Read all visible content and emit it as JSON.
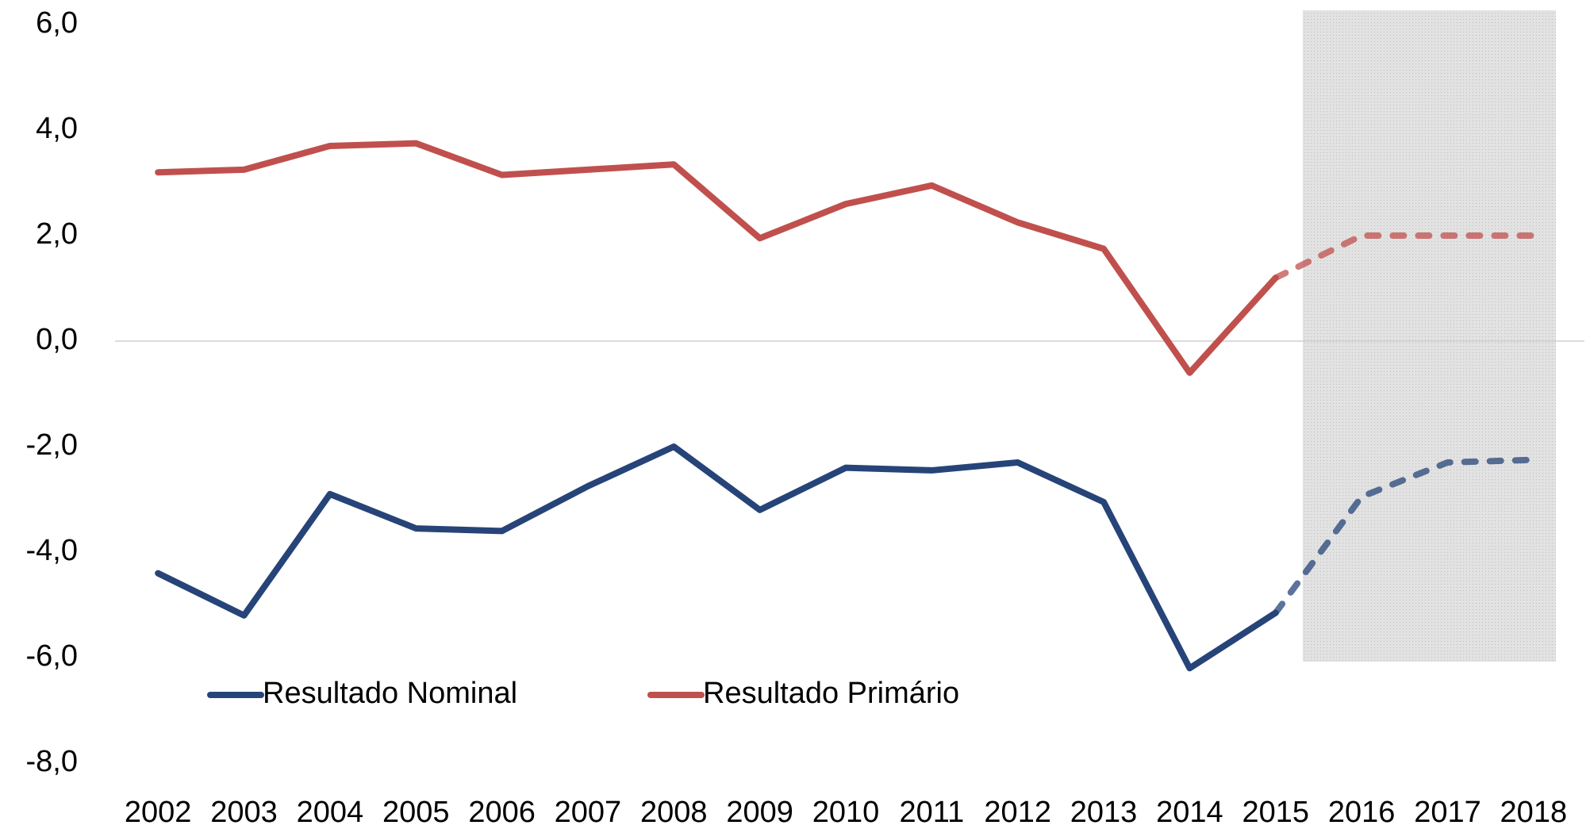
{
  "chart_data": {
    "type": "line",
    "categories": [
      "2002",
      "2003",
      "2004",
      "2005",
      "2006",
      "2007",
      "2008",
      "2009",
      "2010",
      "2011",
      "2012",
      "2013",
      "2014",
      "2015",
      "2016",
      "2017",
      "2018"
    ],
    "series": [
      {
        "name": "Resultado Nominal",
        "color": "#264478",
        "values": [
          -4.4,
          -5.2,
          -2.9,
          -3.55,
          -3.6,
          -2.75,
          -2.0,
          -3.2,
          -2.4,
          -2.45,
          -2.3,
          -3.05,
          -6.2,
          -5.15,
          -2.95,
          -2.3,
          -2.25
        ]
      },
      {
        "name": "Resultado Primário",
        "color": "#c0504d",
        "values": [
          3.2,
          3.25,
          3.7,
          3.75,
          3.15,
          3.25,
          3.35,
          1.95,
          2.6,
          2.95,
          2.25,
          1.75,
          -0.6,
          1.2,
          2.0,
          2.0,
          2.0
        ]
      }
    ],
    "forecast_start": "2016",
    "ylim": [
      -8,
      6
    ],
    "yticks": [
      {
        "value": -8,
        "label": "-8,0"
      },
      {
        "value": -6,
        "label": "-6,0"
      },
      {
        "value": -4,
        "label": "-4,0"
      },
      {
        "value": -2,
        "label": "-2,0"
      },
      {
        "value": 0,
        "label": "0,0"
      },
      {
        "value": 2,
        "label": "2,0"
      },
      {
        "value": 4,
        "label": "4,0"
      },
      {
        "value": 6,
        "label": "6,0"
      }
    ],
    "legend": "bottom-left"
  }
}
